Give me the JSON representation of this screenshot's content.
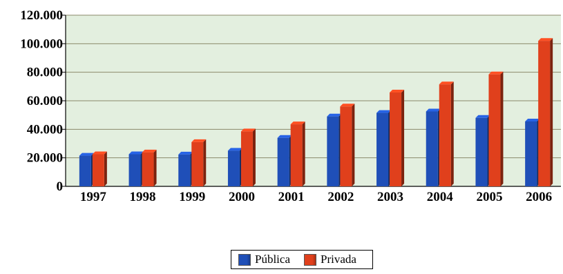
{
  "chart_data": {
    "type": "bar",
    "title": "",
    "xlabel": "",
    "ylabel": "",
    "categories": [
      "1997",
      "1998",
      "1999",
      "2000",
      "2001",
      "2002",
      "2003",
      "2004",
      "2005",
      "2006"
    ],
    "series": [
      {
        "name": "Pública",
        "color": "#1f4fb8",
        "values": [
          21500,
          22500,
          22300,
          25000,
          34000,
          49000,
          51500,
          52500,
          48000,
          45500
        ]
      },
      {
        "name": "Privada",
        "color": "#e0401c",
        "values": [
          22500,
          23800,
          31000,
          38500,
          43500,
          56000,
          65800,
          71500,
          78500,
          102000
        ]
      }
    ],
    "ylim": [
      0,
      120000
    ],
    "yticks": [
      0,
      20000,
      40000,
      60000,
      80000,
      100000,
      120000
    ],
    "ytick_labels": [
      "0",
      "20.000",
      "40.000",
      "60.000",
      "80.000",
      "100.000",
      "120.000"
    ],
    "grid": true,
    "plot_background": "#e3efdf",
    "legend_position": "bottom-center"
  },
  "legend": {
    "items": [
      {
        "label": "Pública",
        "color": "#1f4fb8"
      },
      {
        "label": "Privada",
        "color": "#e0401c"
      }
    ]
  }
}
